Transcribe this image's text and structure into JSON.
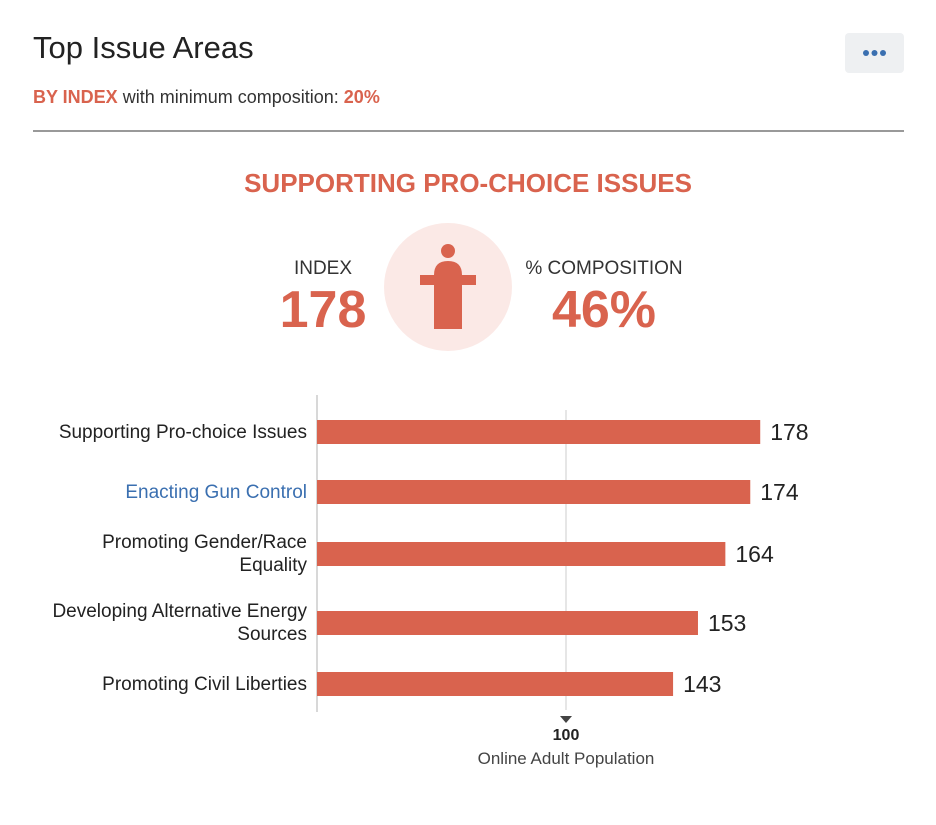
{
  "header": {
    "title": "Top Issue Areas",
    "subtitle_prefix": "BY INDEX",
    "subtitle_text": "with minimum composition:",
    "subtitle_value": "20%"
  },
  "highlight": {
    "title": "SUPPORTING PRO-CHOICE ISSUES",
    "index_label": "INDEX",
    "index_value": "178",
    "composition_label": "% COMPOSITION",
    "composition_value": "46%"
  },
  "chart_data": {
    "type": "bar",
    "orientation": "horizontal",
    "categories": [
      "Supporting Pro-choice Issues",
      "Enacting Gun Control",
      "Promoting Gender/Race Equality",
      "Developing Alternative Energy Sources",
      "Promoting Civil Liberties"
    ],
    "values": [
      178,
      174,
      164,
      153,
      143
    ],
    "color": "#d9634e",
    "label_colors": [
      "#222222",
      "#3a6fb0",
      "#222222",
      "#222222",
      "#222222"
    ],
    "xlim": [
      0,
      200
    ],
    "xticks": [
      100
    ],
    "x_axis_label": "Online Adult Population"
  }
}
